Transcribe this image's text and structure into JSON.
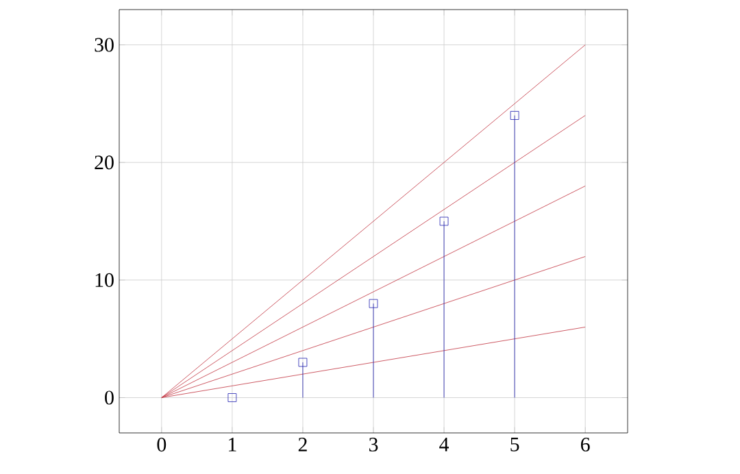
{
  "chart_data": {
    "type": "line",
    "xlim": [
      -0.6,
      6.6
    ],
    "ylim": [
      -3,
      33
    ],
    "xticks": [
      0,
      1,
      2,
      3,
      4,
      5,
      6
    ],
    "yticks": [
      0,
      10,
      20,
      30
    ],
    "grid": true,
    "line_style": "solid",
    "series": [
      {
        "color": "#c0303c",
        "marker": "none",
        "x": [
          0,
          6
        ],
        "values": [
          0,
          6
        ]
      },
      {
        "color": "#c0303c",
        "marker": "none",
        "x": [
          0,
          6
        ],
        "values": [
          0,
          12
        ]
      },
      {
        "color": "#c0303c",
        "marker": "none",
        "x": [
          0,
          6
        ],
        "values": [
          0,
          18
        ]
      },
      {
        "color": "#c0303c",
        "marker": "none",
        "x": [
          0,
          6
        ],
        "values": [
          0,
          24
        ]
      },
      {
        "color": "#c0303c",
        "marker": "none",
        "x": [
          0,
          6
        ],
        "values": [
          0,
          30
        ]
      },
      {
        "type": "lollipop",
        "color": "#2020b0",
        "marker": "square",
        "x": [
          1,
          2,
          3,
          4,
          5
        ],
        "values": [
          0,
          3,
          8,
          15,
          24
        ]
      }
    ]
  }
}
